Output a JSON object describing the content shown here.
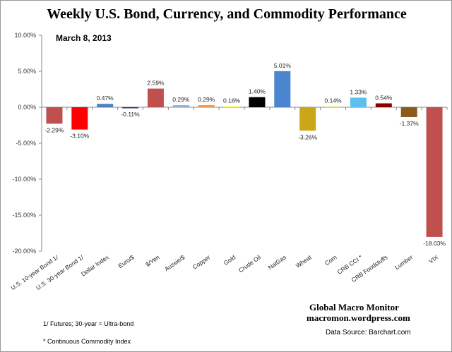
{
  "chart_data": {
    "type": "bar",
    "title": "Weekly U.S. Bond, Currency, and Commodity Performance",
    "subtitle": "March 8, 2013",
    "categories": [
      "U.S. 10-year Bond 1/",
      "U.S. 30-year Bond 1/",
      "Dollar Index",
      "Euro/$",
      "$/Yen",
      "Aussie/$",
      "Copper",
      "Gold",
      "Crude Oil",
      "NatGas",
      "Wheat",
      "Corn",
      "CRB CCI *",
      "CRB Foodstuffs",
      "Lumber",
      "VIX"
    ],
    "values": [
      -2.29,
      -3.1,
      0.47,
      -0.11,
      2.59,
      0.29,
      0.29,
      0.16,
      1.4,
      5.01,
      -3.26,
      0.14,
      1.33,
      0.54,
      -1.37,
      -18.03
    ],
    "data_labels": [
      "-2.29%",
      "-3.10%",
      "0.47%",
      "-0.11%",
      "2.59%",
      "0.29%",
      "0.29%",
      "0.16%",
      "1.40%",
      "5.01%",
      "-3.26%",
      "0.14%",
      "1.33%",
      "0.54%",
      "-1.37%",
      "-18.03%"
    ],
    "colors": [
      "#c0504d",
      "#ff0000",
      "#4f81bd",
      "#1f3864",
      "#c0504d",
      "#95b3d7",
      "#f79646",
      "#ffff66",
      "#000000",
      "#4a86d0",
      "#c9a718",
      "#f0e68c",
      "#5bc0f0",
      "#8b0000",
      "#8b5a1c",
      "#c0504d"
    ],
    "ylim": [
      -20,
      10
    ],
    "yticks": [
      "10.00%",
      "5.00%",
      "0.00%",
      "-5.00%",
      "-10.00%",
      "-15.00%",
      "-20.00%"
    ],
    "ytick_values": [
      10,
      5,
      0,
      -5,
      -10,
      -15,
      -20
    ],
    "grid": false,
    "legend": "none"
  },
  "footnotes": [
    "1/  Futures; 30-year = Ultra-bond",
    "* Continuous Commodity  Index"
  ],
  "brand": {
    "name": "Global Macro Monitor",
    "site": "macromon.wordpress.com",
    "source": "Data Source:  Barchart.com"
  }
}
